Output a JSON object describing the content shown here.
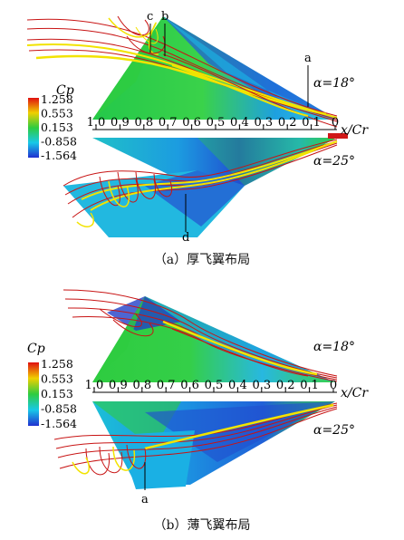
{
  "colors": {
    "high": "#e01010",
    "mid_high": "#f0d000",
    "mid": "#2ecc40",
    "mid_low": "#18c8e8",
    "low": "#2030d0",
    "streak_red": "#c81414",
    "streak_yellow": "#f2e300"
  },
  "colorbar": {
    "title": "Cp",
    "levels": [
      "1.258",
      "0.553",
      "0.153",
      "-0.858",
      "-1.564"
    ]
  },
  "axis": {
    "label": "x/Cr",
    "ticks": [
      "1.0",
      "0.9",
      "0.8",
      "0.7",
      "0.6",
      "0.5",
      "0.4",
      "0.3",
      "0.2",
      "0.1",
      "0"
    ]
  },
  "panels": [
    {
      "caption": "（a）厚飞翼布局",
      "alpha_top": "α=18°",
      "alpha_bottom": "α=25°",
      "annotations": [
        "c",
        "b",
        "a",
        "d"
      ]
    },
    {
      "caption": "（b）薄飞翼布局",
      "alpha_top": "α=18°",
      "alpha_bottom": "α=25°",
      "annotations": [
        "a"
      ]
    }
  ]
}
